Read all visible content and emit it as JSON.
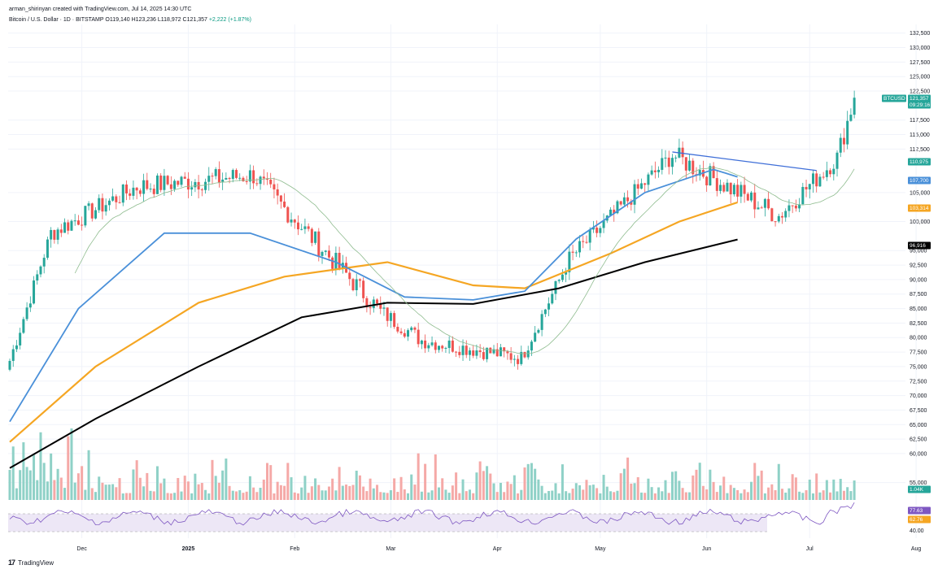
{
  "header": {
    "author_line": "arman_shirinyan created with TradingView.com, Jul 14, 2025 14:30 UTC",
    "symbol": "Bitcoin / U.S. Dollar · 1D · BITSTAMP",
    "open": "O119,140",
    "high": "H123,236",
    "low": "L118,972",
    "close": "C121,357",
    "change": "+2,222 (+1.87%)"
  },
  "branding": {
    "logo_text": "TradingView"
  },
  "colors": {
    "up": "#26a69a",
    "down": "#ef5350",
    "vol_up": "#8fd1c7",
    "vol_down": "#f5a9a7",
    "sma20": "#8fbc8f",
    "sma50": "#4a90d9",
    "sma100": "#f5a623",
    "sma200": "#000000",
    "trendline": "#3f6fd8",
    "rsi": "#7e57c2",
    "rsi_band": "#ede7f6"
  },
  "price_tags": [
    {
      "label": "BTCUSD",
      "value": "121,357",
      "sub": "09:29:16",
      "bg": "#26a69a"
    },
    {
      "value": "110,975",
      "bg": "#26a69a"
    },
    {
      "value": "107,700",
      "bg": "#4a90d9"
    },
    {
      "value": "103,314",
      "bg": "#f5a623"
    },
    {
      "value": "96,916",
      "bg": "#000000"
    },
    {
      "value": "1.04K",
      "bg": "#26a69a"
    },
    {
      "value": "77.63",
      "bg": "#7e57c2"
    },
    {
      "value": "62.76",
      "bg": "#f5a623"
    }
  ],
  "chart_data": {
    "type": "candlestick",
    "y_axis_ticks": [
      "132,500",
      "130,000",
      "127,500",
      "125,000",
      "122,500",
      "117,500",
      "115,000",
      "112,500",
      "105,000",
      "100,000",
      "95,000",
      "92,500",
      "90,000",
      "87,500",
      "85,000",
      "82,500",
      "80,000",
      "77,500",
      "75,000",
      "72,500",
      "70,000",
      "67,500",
      "65,000",
      "62,500",
      "60,000",
      "55,000"
    ],
    "rsi_ticks": [
      "40.00"
    ],
    "x_axis_ticks": [
      "Dec",
      "2025",
      "Feb",
      "Mar",
      "Apr",
      "May",
      "Jun",
      "Jul",
      "Aug"
    ],
    "ylim": [
      52000,
      134000
    ],
    "trendline": [
      [
        "2025-05-22",
        112000
      ],
      [
        "2025-07-03",
        108800
      ]
    ],
    "key_points": [
      {
        "date": "2024-11-10",
        "close": 76000
      },
      {
        "date": "2024-11-22",
        "close": 98000
      },
      {
        "date": "2024-12-17",
        "close": 106000
      },
      {
        "date": "2025-01-20",
        "close": 108000
      },
      {
        "date": "2025-02-26",
        "close": 84500
      },
      {
        "date": "2025-03-10",
        "close": 79500
      },
      {
        "date": "2025-04-08",
        "close": 76500
      },
      {
        "date": "2025-04-22",
        "close": 93500
      },
      {
        "date": "2025-05-22",
        "close": 111500
      },
      {
        "date": "2025-06-22",
        "close": 101000
      },
      {
        "date": "2025-07-09",
        "close": 111000
      },
      {
        "date": "2025-07-14",
        "close": 121357
      }
    ],
    "sma": {
      "sma50": [
        [
          0,
          65500
        ],
        [
          20,
          85000
        ],
        [
          45,
          98000
        ],
        [
          70,
          98000
        ],
        [
          95,
          93000
        ],
        [
          115,
          87000
        ],
        [
          135,
          86500
        ],
        [
          150,
          88000
        ],
        [
          165,
          97000
        ],
        [
          185,
          105000
        ],
        [
          205,
          109000
        ],
        [
          212,
          107700
        ]
      ],
      "sma100": [
        [
          0,
          62000
        ],
        [
          25,
          75000
        ],
        [
          55,
          86000
        ],
        [
          80,
          90500
        ],
        [
          110,
          93000
        ],
        [
          135,
          89000
        ],
        [
          150,
          88500
        ],
        [
          175,
          94500
        ],
        [
          195,
          100000
        ],
        [
          212,
          103314
        ]
      ],
      "sma200": [
        [
          0,
          57500
        ],
        [
          25,
          66000
        ],
        [
          55,
          75000
        ],
        [
          85,
          83500
        ],
        [
          110,
          86000
        ],
        [
          135,
          85800
        ],
        [
          160,
          88500
        ],
        [
          185,
          93000
        ],
        [
          212,
          96916
        ]
      ]
    }
  }
}
